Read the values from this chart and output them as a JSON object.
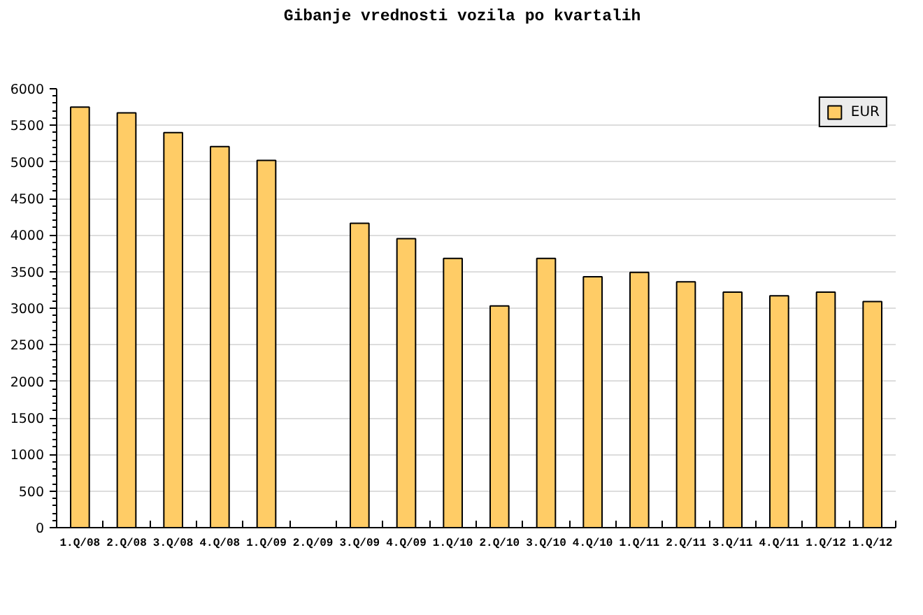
{
  "chart_data": {
    "type": "bar",
    "title": "Gibanje vrednosti vozila po kvartalih",
    "categories": [
      "1.Q/08",
      "2.Q/08",
      "3.Q/08",
      "4.Q/08",
      "1.Q/09",
      "2.Q/09",
      "3.Q/09",
      "4.Q/09",
      "1.Q/10",
      "2.Q/10",
      "3.Q/10",
      "4.Q/10",
      "1.Q/11",
      "2.Q/11",
      "3.Q/11",
      "4.Q/11",
      "1.Q/12",
      "1.Q/12"
    ],
    "series": [
      {
        "name": "EUR",
        "color": "#ffcc66",
        "values": [
          5750,
          5670,
          5400,
          5210,
          5020,
          null,
          4160,
          3950,
          3680,
          3030,
          3680,
          3430,
          3490,
          3360,
          3220,
          3170,
          3220,
          3090
        ]
      }
    ],
    "ylim": [
      0,
      6000
    ],
    "yticks": [
      0,
      500,
      1000,
      1500,
      2000,
      2500,
      3000,
      3500,
      4000,
      4500,
      5000,
      5500,
      6000
    ],
    "grid": "y",
    "legend": "top right"
  }
}
